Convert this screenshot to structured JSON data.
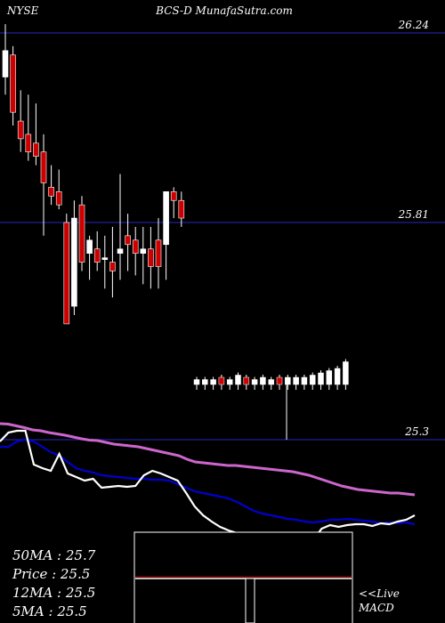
{
  "header": {
    "exchange": "NYSE",
    "symbol_site": "BCS-D MunafaSutra.com"
  },
  "stats": {
    "ma50": "50MA : 25.7",
    "price": "Price  : 25.5",
    "ma12": "12MA : 25.5",
    "ma5": "5MA : 25.5"
  },
  "macd_panel": {
    "live_label": "<<Live",
    "macd_label": "MACD"
  },
  "colors": {
    "up": "#ffffff",
    "down": "#cc0000",
    "ma_long": "#cc66cc",
    "ma_mid": "#0000cc",
    "ma_short": "#ffffff",
    "gridline": "#1a1a80"
  },
  "chart_data": {
    "type": "candlestick",
    "price_levels": [
      26.24,
      25.81,
      25.3
    ],
    "ylim": [
      25.3,
      26.36
    ],
    "candles": [
      {
        "o": 26.14,
        "h": 26.26,
        "l": 26.1,
        "c": 26.2
      },
      {
        "o": 26.19,
        "h": 26.21,
        "l": 26.03,
        "c": 26.06
      },
      {
        "o": 26.04,
        "h": 26.11,
        "l": 25.97,
        "c": 26.0
      },
      {
        "o": 26.01,
        "h": 26.1,
        "l": 25.95,
        "c": 25.97
      },
      {
        "o": 25.99,
        "h": 26.08,
        "l": 25.94,
        "c": 25.96
      },
      {
        "o": 25.97,
        "h": 26.01,
        "l": 25.78,
        "c": 25.9
      },
      {
        "o": 25.89,
        "h": 25.94,
        "l": 25.85,
        "c": 25.87
      },
      {
        "o": 25.88,
        "h": 25.93,
        "l": 25.84,
        "c": 25.85
      },
      {
        "o": 25.81,
        "h": 25.83,
        "l": 25.58,
        "c": 25.58
      },
      {
        "o": 25.62,
        "h": 25.86,
        "l": 25.6,
        "c": 25.82
      },
      {
        "o": 25.85,
        "h": 25.87,
        "l": 25.7,
        "c": 25.72
      },
      {
        "o": 25.74,
        "h": 25.78,
        "l": 25.68,
        "c": 25.77
      },
      {
        "o": 25.75,
        "h": 25.79,
        "l": 25.7,
        "c": 25.72
      },
      {
        "o": 25.73,
        "h": 25.78,
        "l": 25.66,
        "c": 25.73
      },
      {
        "o": 25.72,
        "h": 25.8,
        "l": 25.64,
        "c": 25.7
      },
      {
        "o": 25.74,
        "h": 25.92,
        "l": 25.68,
        "c": 25.75
      },
      {
        "o": 25.78,
        "h": 25.83,
        "l": 25.7,
        "c": 25.76
      },
      {
        "o": 25.77,
        "h": 25.8,
        "l": 25.69,
        "c": 25.74
      },
      {
        "o": 25.74,
        "h": 25.8,
        "l": 25.67,
        "c": 25.75
      },
      {
        "o": 25.75,
        "h": 25.8,
        "l": 25.66,
        "c": 25.71
      },
      {
        "o": 25.77,
        "h": 25.82,
        "l": 25.66,
        "c": 25.71
      },
      {
        "o": 25.76,
        "h": 25.87,
        "l": 25.68,
        "c": 25.88
      },
      {
        "o": 25.88,
        "h": 25.89,
        "l": 25.82,
        "c": 25.86
      },
      {
        "o": 25.86,
        "h": 25.88,
        "l": 25.8,
        "c": 25.82
      }
    ],
    "volume": [
      {
        "v": 0.01,
        "up": true
      },
      {
        "v": 0.01,
        "up": true
      },
      {
        "v": 0.01,
        "up": true
      },
      {
        "v": 0.02,
        "up": false
      },
      {
        "v": 0.01,
        "up": true
      },
      {
        "v": 0.03,
        "up": true
      },
      {
        "v": 0.02,
        "up": false
      },
      {
        "v": 0.01,
        "up": true
      },
      {
        "v": 0.02,
        "up": true
      },
      {
        "v": 0.01,
        "up": true
      },
      {
        "v": 0.02,
        "up": false
      },
      {
        "v": 0.02,
        "up": true
      },
      {
        "v": 0.02,
        "up": true
      },
      {
        "v": 0.02,
        "up": true
      },
      {
        "v": 0.03,
        "up": true
      },
      {
        "v": 0.04,
        "up": true
      },
      {
        "v": 0.05,
        "up": true
      },
      {
        "v": 0.06,
        "up": true
      },
      {
        "v": 0.09,
        "up": true
      }
    ],
    "ma_series": [
      {
        "values": [
          0.02,
          0.025,
          0.045,
          0.065,
          0.09,
          0.1,
          0.12,
          0.135,
          0.15,
          0.17,
          0.19,
          0.205,
          0.21,
          0.23,
          0.25,
          0.26,
          0.27,
          0.28,
          0.3,
          0.32,
          0.34,
          0.36,
          0.38,
          0.42,
          0.45,
          0.46,
          0.47,
          0.48,
          0.49,
          0.49,
          0.5,
          0.51,
          0.52,
          0.53,
          0.54,
          0.55,
          0.56,
          0.58,
          0.6,
          0.63,
          0.66,
          0.69,
          0.72,
          0.74,
          0.76,
          0.77,
          0.78,
          0.79,
          0.8,
          0.8,
          0.81,
          0.82
        ]
      },
      {
        "values": [
          0.28,
          0.28,
          0.22,
          0.2,
          0.22,
          0.28,
          0.34,
          0.38,
          0.45,
          0.52,
          0.55,
          0.57,
          0.6,
          0.61,
          0.62,
          0.63,
          0.64,
          0.64,
          0.65,
          0.65,
          0.66,
          0.7,
          0.74,
          0.78,
          0.8,
          0.82,
          0.84,
          0.86,
          0.9,
          0.95,
          1.0,
          1.03,
          1.05,
          1.07,
          1.09,
          1.1,
          1.12,
          1.13,
          1.12,
          1.1,
          1.1,
          1.09,
          1.1,
          1.11,
          1.12,
          1.14,
          1.13,
          1.14,
          1.13,
          1.15
        ]
      },
      {
        "values": [
          0.22,
          0.12,
          0.1,
          0.1,
          0.48,
          0.52,
          0.55,
          0.36,
          0.58,
          0.62,
          0.66,
          0.64,
          0.74,
          0.73,
          0.72,
          0.73,
          0.72,
          0.6,
          0.55,
          0.58,
          0.62,
          0.66,
          0.8,
          0.95,
          1.05,
          1.12,
          1.18,
          1.22,
          1.25,
          1.26,
          1.27,
          1.28,
          1.3,
          1.32,
          1.33,
          1.34,
          1.34,
          1.33,
          1.2,
          1.16,
          1.18,
          1.16,
          1.15,
          1.15,
          1.17,
          1.14,
          1.15,
          1.12,
          1.1,
          1.05
        ]
      }
    ],
    "macd": {
      "macd_line": [
        0.5,
        0.5,
        0.5,
        0.5,
        0.5,
        0.5,
        0.5,
        0.5,
        0.5,
        0.5,
        0.5,
        0.5,
        0.5,
        0.5,
        0.5,
        0.5,
        0.5,
        0.5,
        0.5,
        0.5
      ],
      "histogram_index": 10,
      "histogram_value": -0.9
    }
  }
}
